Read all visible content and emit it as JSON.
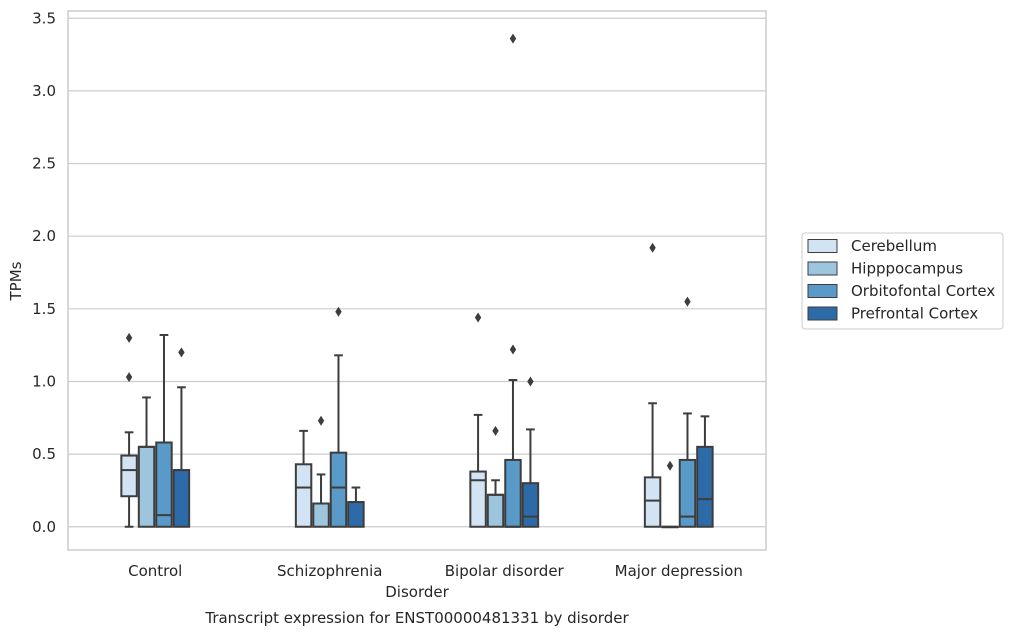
{
  "chart_data": {
    "type": "boxplot",
    "title": "",
    "caption": "Transcript expression for ENST00000481331 by disorder",
    "xlabel": "Disorder",
    "ylabel": "TPMs",
    "ylim": [
      -0.16,
      3.55
    ],
    "yticks": [
      0.0,
      0.5,
      1.0,
      1.5,
      2.0,
      2.5,
      3.0,
      3.5
    ],
    "ytick_labels": [
      "0.0",
      "0.5",
      "1.0",
      "1.5",
      "2.0",
      "2.5",
      "3.0",
      "3.5"
    ],
    "grid": "horizontal",
    "legend_position": "right",
    "categories": [
      "Control",
      "Schizophrenia",
      "Bipolar disorder",
      "Major depression"
    ],
    "series": [
      {
        "name": "Cerebellum",
        "color": "#d2e3f3",
        "boxes": [
          {
            "whisker_low": 0.0,
            "q1": 0.21,
            "median": 0.39,
            "q3": 0.49,
            "whisker_high": 0.65,
            "outliers": [
              1.03,
              1.3
            ]
          },
          {
            "whisker_low": 0.0,
            "q1": 0.0,
            "median": 0.27,
            "q3": 0.43,
            "whisker_high": 0.66,
            "outliers": []
          },
          {
            "whisker_low": 0.0,
            "q1": 0.0,
            "median": 0.32,
            "q3": 0.38,
            "whisker_high": 0.77,
            "outliers": [
              1.44
            ]
          },
          {
            "whisker_low": 0.0,
            "q1": 0.0,
            "median": 0.18,
            "q3": 0.34,
            "whisker_high": 0.85,
            "outliers": [
              1.92
            ]
          }
        ]
      },
      {
        "name": "Hipppocampus",
        "color": "#9dc6de",
        "boxes": [
          {
            "whisker_low": 0.0,
            "q1": 0.0,
            "median": 0.55,
            "q3": 0.55,
            "whisker_high": 0.89,
            "outliers": []
          },
          {
            "whisker_low": 0.0,
            "q1": 0.0,
            "median": 0.16,
            "q3": 0.16,
            "whisker_high": 0.36,
            "outliers": [
              0.73
            ]
          },
          {
            "whisker_low": 0.0,
            "q1": 0.0,
            "median": 0.22,
            "q3": 0.22,
            "whisker_high": 0.32,
            "outliers": [
              0.66
            ]
          },
          {
            "whisker_low": 0.0,
            "q1": 0.0,
            "median": 0.0,
            "q3": 0.0,
            "whisker_high": 0.0,
            "outliers": [
              0.42
            ]
          }
        ]
      },
      {
        "name": "Orbitofontal Cortex",
        "color": "#5a9ac8",
        "boxes": [
          {
            "whisker_low": 0.0,
            "q1": 0.0,
            "median": 0.08,
            "q3": 0.58,
            "whisker_high": 1.32,
            "outliers": []
          },
          {
            "whisker_low": 0.0,
            "q1": 0.0,
            "median": 0.27,
            "q3": 0.51,
            "whisker_high": 1.18,
            "outliers": [
              1.48
            ]
          },
          {
            "whisker_low": 0.0,
            "q1": 0.0,
            "median": 0.0,
            "q3": 0.46,
            "whisker_high": 1.01,
            "outliers": [
              1.22,
              3.36
            ]
          },
          {
            "whisker_low": 0.0,
            "q1": 0.0,
            "median": 0.07,
            "q3": 0.46,
            "whisker_high": 0.78,
            "outliers": [
              1.55
            ]
          }
        ]
      },
      {
        "name": "Prefrontal Cortex",
        "color": "#2d6ba8",
        "boxes": [
          {
            "whisker_low": 0.0,
            "q1": 0.0,
            "median": 0.39,
            "q3": 0.39,
            "whisker_high": 0.96,
            "outliers": [
              1.2
            ]
          },
          {
            "whisker_low": 0.0,
            "q1": 0.0,
            "median": 0.17,
            "q3": 0.17,
            "whisker_high": 0.27,
            "outliers": []
          },
          {
            "whisker_low": 0.0,
            "q1": 0.0,
            "median": 0.07,
            "q3": 0.3,
            "whisker_high": 0.67,
            "outliers": [
              1.0
            ]
          },
          {
            "whisker_low": 0.0,
            "q1": 0.0,
            "median": 0.19,
            "q3": 0.55,
            "whisker_high": 0.76,
            "outliers": []
          }
        ]
      }
    ]
  }
}
